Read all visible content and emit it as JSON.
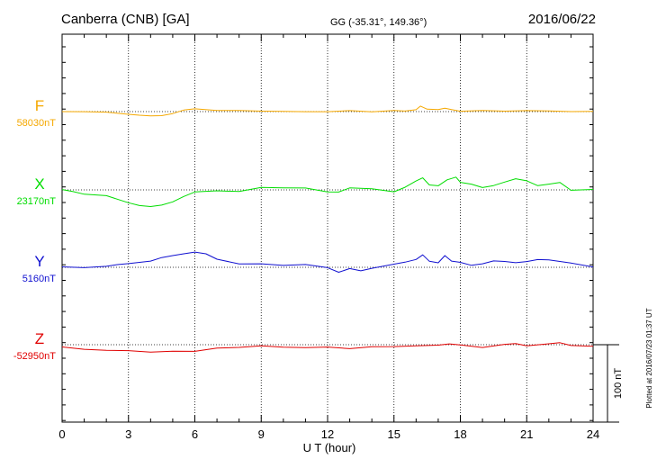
{
  "header": {
    "station": "Canberra (CNB)  [GA]",
    "coords": "GG (-35.31°, 149.36°)",
    "date": "2016/06/22"
  },
  "footer": {
    "xlabel": "U T (hour)",
    "plotted": "Plotted at 2016/07/23 01:37 UT",
    "scale_label": "100 nT"
  },
  "colors": {
    "F": "#f5a800",
    "X": "#00dd00",
    "Y": "#1010d0",
    "Z": "#e00000"
  },
  "chart_data": {
    "type": "line",
    "xlim": [
      0,
      24
    ],
    "x_ticks": [
      "0",
      "3",
      "6",
      "9",
      "12",
      "15",
      "18",
      "21",
      "24"
    ],
    "grid": "dotted vertical lines at every 3 hours; dotted horizontal baseline per component",
    "scale_bar_nT": 100,
    "series": [
      {
        "name": "F",
        "baseline_label": "58030nT",
        "color": "#f5a800",
        "x": [
          0,
          1,
          2,
          3,
          3.5,
          4,
          4.5,
          5,
          5.5,
          6,
          7,
          8,
          9,
          10,
          11,
          12,
          13,
          14,
          15,
          15.5,
          16,
          16.2,
          16.5,
          17,
          17.3,
          17.6,
          18,
          19,
          20,
          21,
          22,
          23,
          24
        ],
        "y": [
          0,
          0,
          -1,
          -3,
          -5,
          -6,
          -5,
          -2,
          2,
          3,
          2,
          1,
          1,
          0,
          0,
          0,
          1,
          0,
          1,
          1,
          3,
          7,
          3,
          2,
          5,
          2,
          1,
          1,
          1,
          1,
          1,
          0,
          0
        ]
      },
      {
        "name": "X",
        "baseline_label": "23170nT",
        "color": "#00dd00",
        "x": [
          0,
          0.5,
          1,
          2,
          3,
          3.5,
          4,
          4.5,
          5,
          5.5,
          6,
          7,
          8,
          9,
          10,
          11,
          12,
          12.5,
          13,
          14,
          15,
          15.5,
          16,
          16.3,
          16.6,
          17,
          17.4,
          17.8,
          18,
          18.5,
          19,
          19.5,
          20,
          20.5,
          21,
          21.5,
          22,
          22.5,
          23,
          24
        ],
        "y": [
          0,
          -2,
          -5,
          -8,
          -16,
          -20,
          -22,
          -20,
          -15,
          -8,
          -3,
          -1,
          -2,
          3,
          3,
          2,
          -2,
          -3,
          2,
          2,
          -3,
          3,
          12,
          15,
          7,
          5,
          13,
          17,
          10,
          8,
          3,
          5,
          10,
          15,
          12,
          5,
          7,
          10,
          0,
          0
        ]
      },
      {
        "name": "Y",
        "baseline_label": "5160nT",
        "color": "#1010d0",
        "x": [
          0,
          1,
          2,
          2.5,
          3,
          4,
          4.5,
          5,
          5.5,
          6,
          6.5,
          7,
          8,
          9,
          10,
          11,
          12,
          12.5,
          13,
          13.5,
          14,
          15,
          15.5,
          16,
          16.3,
          16.6,
          17,
          17.3,
          17.6,
          18,
          18.5,
          19,
          19.5,
          20,
          20.5,
          21,
          21.5,
          22,
          23,
          24
        ],
        "y": [
          0,
          0,
          1,
          3,
          5,
          8,
          12,
          15,
          18,
          20,
          17,
          10,
          5,
          4,
          3,
          3,
          0,
          -6,
          -2,
          -5,
          -1,
          4,
          6,
          10,
          16,
          8,
          6,
          15,
          8,
          6,
          3,
          5,
          8,
          7,
          6,
          8,
          10,
          9,
          6,
          0
        ]
      },
      {
        "name": "Z",
        "baseline_label": "-52950nT",
        "color": "#e00000",
        "x": [
          0,
          1,
          2,
          3,
          4,
          5,
          6,
          7,
          8,
          9,
          10,
          11,
          12,
          13,
          14,
          15,
          16,
          17,
          17.5,
          18,
          19,
          20,
          20.5,
          21,
          22,
          22.5,
          23,
          24
        ],
        "y": [
          -3,
          -6,
          -7,
          -8,
          -9,
          -9,
          -8,
          -5,
          -3,
          -2,
          -3,
          -4,
          -3,
          -5,
          -3,
          -2,
          -2,
          0,
          1,
          -1,
          -3,
          0,
          1,
          -1,
          1,
          2,
          -1,
          -2
        ]
      }
    ]
  }
}
